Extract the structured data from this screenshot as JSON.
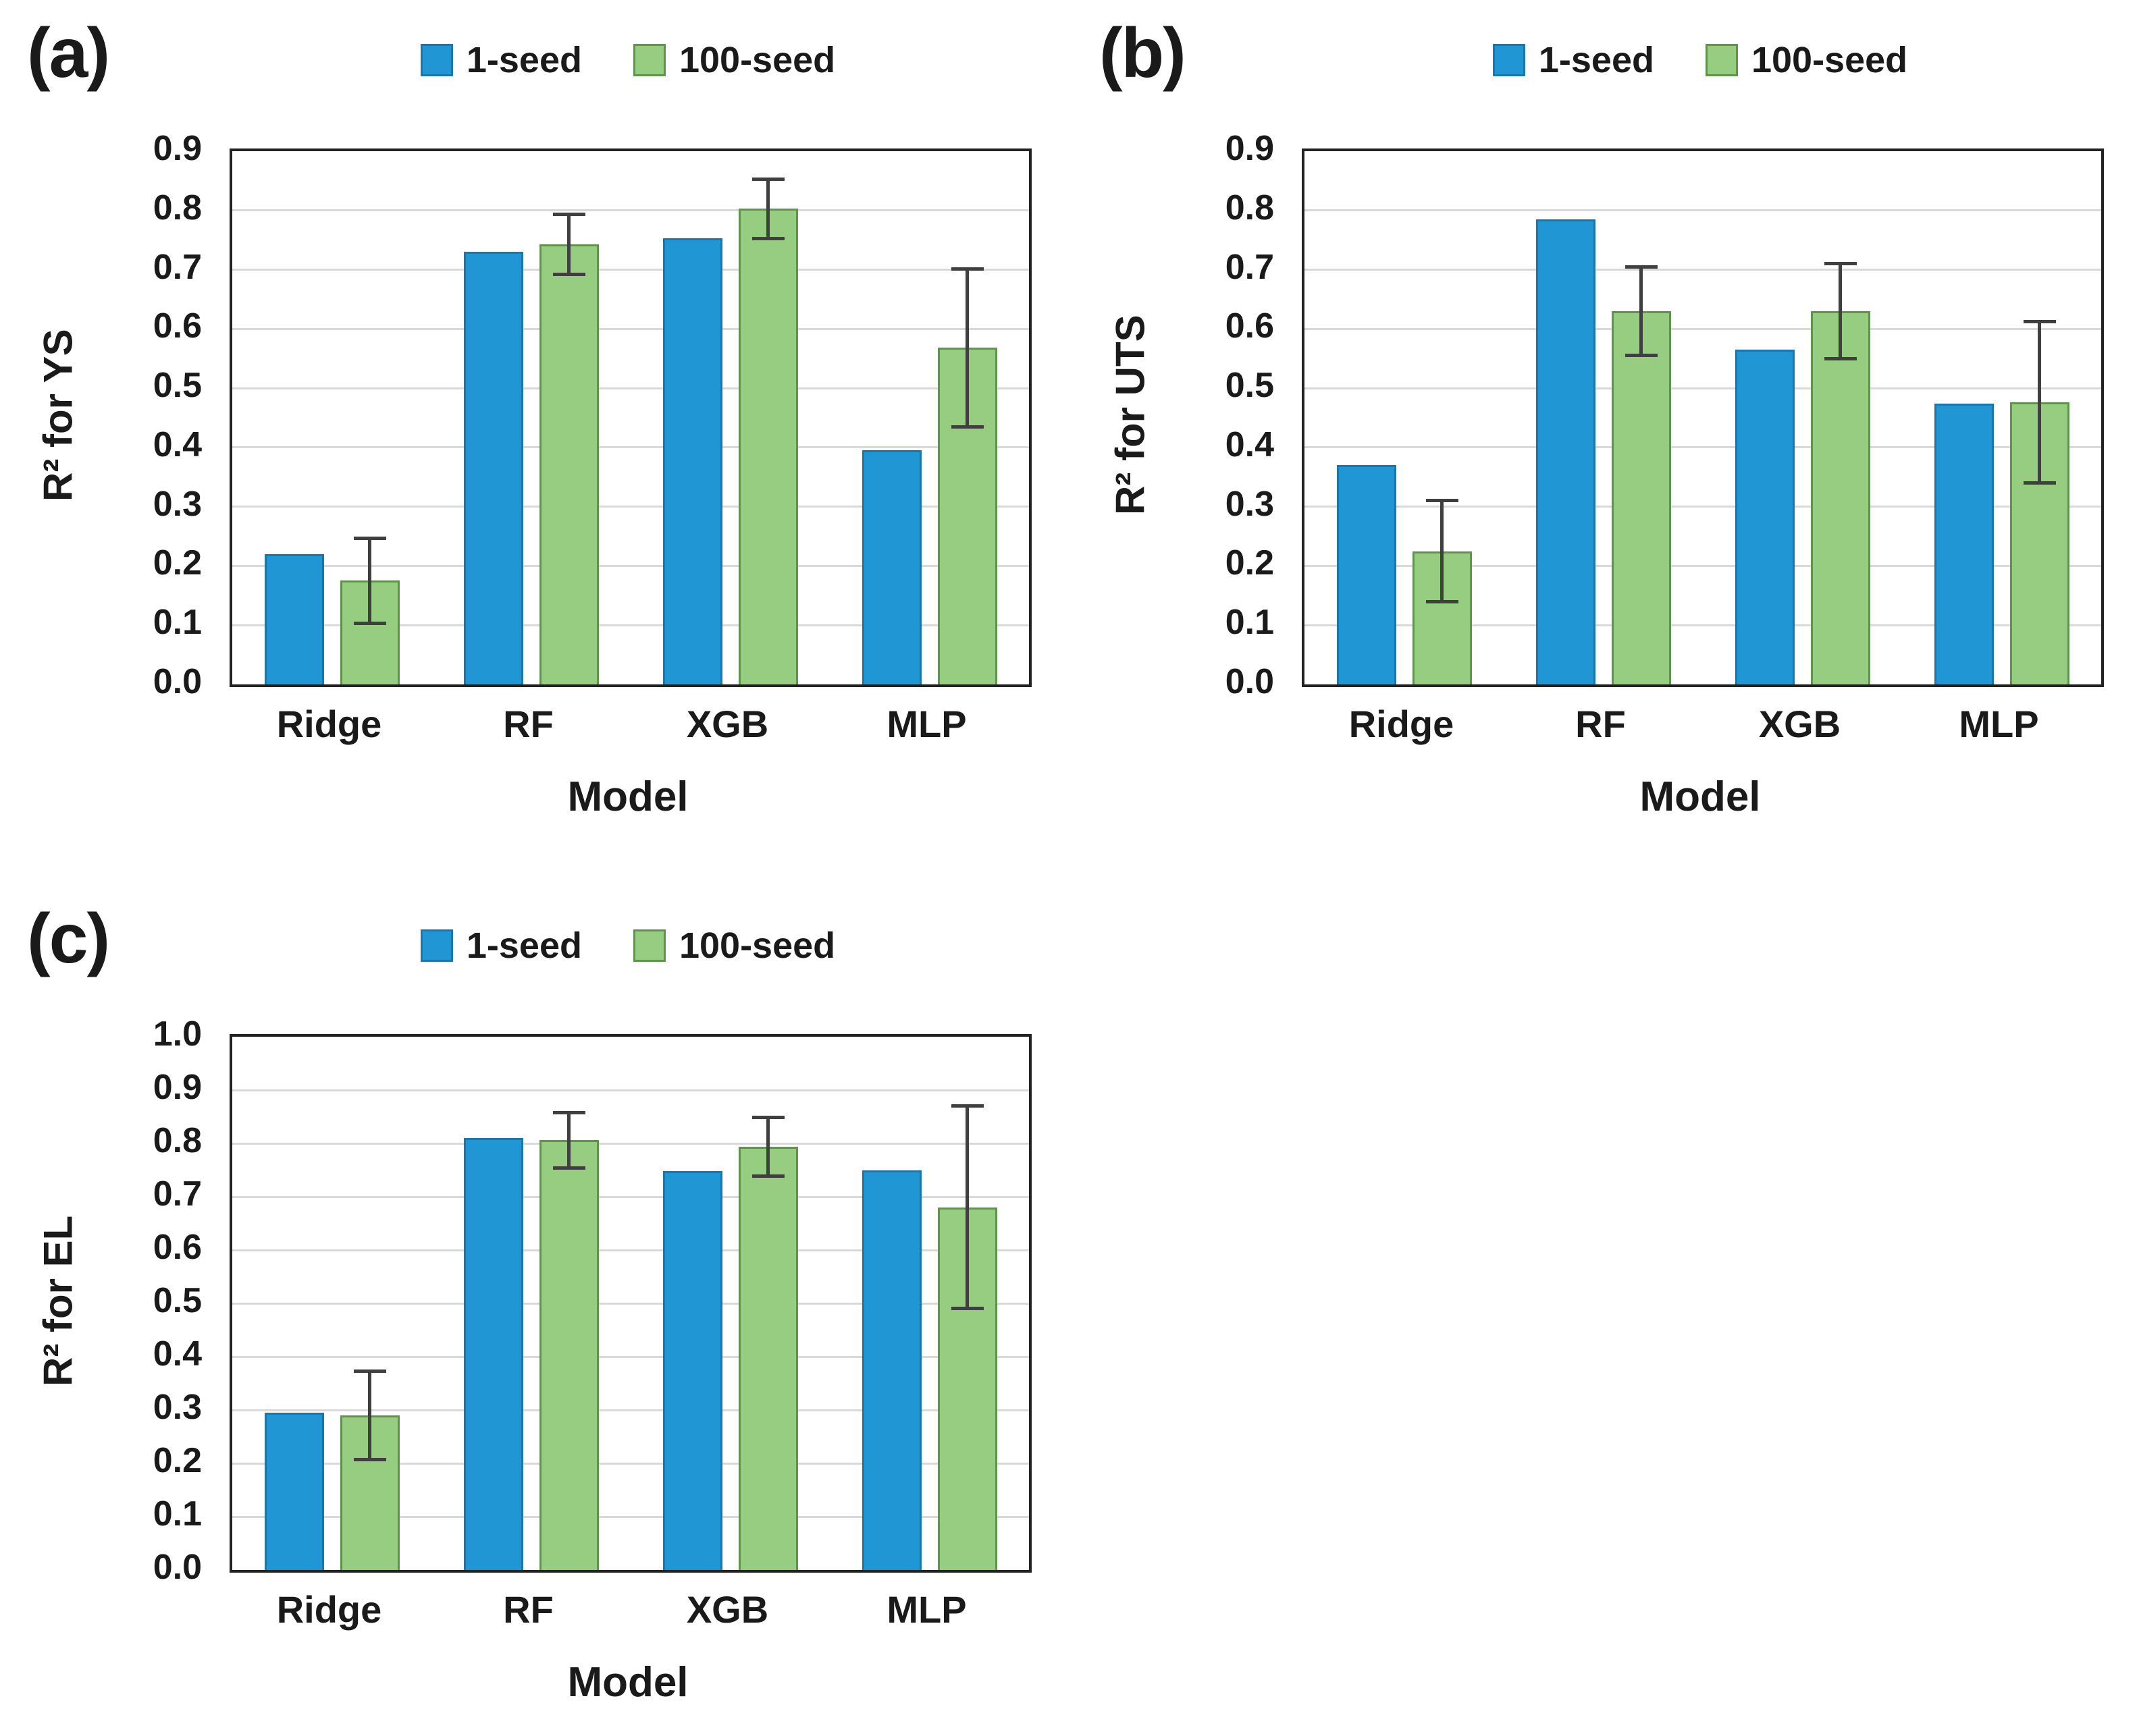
{
  "chart_data": [
    {
      "type": "bar",
      "panel_label": "(a)",
      "ylabel": "R² for YS",
      "xlabel": "Model",
      "ymax": 0.9,
      "ystep": 0.1,
      "ylim": [
        0.0,
        0.9
      ],
      "grid": "horizontal",
      "legend_position": "top-center",
      "yticks": [
        "0.9",
        "0.8",
        "0.7",
        "0.6",
        "0.5",
        "0.4",
        "0.3",
        "0.2",
        "0.1",
        "0.0"
      ],
      "categories": [
        "Ridge",
        "RF",
        "XGB",
        "MLP"
      ],
      "series": [
        {
          "name": "1-seed",
          "color": "#2196D4",
          "border": "#1878AE",
          "values": [
            0.22,
            0.73,
            0.753,
            0.395
          ],
          "errors": [
            null,
            null,
            null,
            null
          ]
        },
        {
          "name": "100-seed",
          "color": "#97CD80",
          "border": "#5E944B",
          "values": [
            0.175,
            0.743,
            0.803,
            0.568
          ],
          "errors": [
            0.072,
            0.051,
            0.05,
            0.133
          ]
        }
      ]
    },
    {
      "type": "bar",
      "panel_label": "(b)",
      "ylabel": "R² for UTS",
      "xlabel": "Model",
      "ymax": 0.9,
      "ystep": 0.1,
      "ylim": [
        0.0,
        0.9
      ],
      "grid": "horizontal",
      "legend_position": "top-center",
      "yticks": [
        "0.9",
        "0.8",
        "0.7",
        "0.6",
        "0.5",
        "0.4",
        "0.3",
        "0.2",
        "0.1",
        "0.0"
      ],
      "categories": [
        "Ridge",
        "RF",
        "XGB",
        "MLP"
      ],
      "series": [
        {
          "name": "1-seed",
          "color": "#2196D4",
          "border": "#1878AE",
          "values": [
            0.37,
            0.785,
            0.565,
            0.474
          ],
          "errors": [
            null,
            null,
            null,
            null
          ]
        },
        {
          "name": "100-seed",
          "color": "#97CD80",
          "border": "#5E944B",
          "values": [
            0.225,
            0.63,
            0.63,
            0.476
          ],
          "errors": [
            0.085,
            0.075,
            0.08,
            0.136
          ]
        }
      ]
    },
    {
      "type": "bar",
      "panel_label": "(c)",
      "ylabel": "R² for EL",
      "xlabel": "Model",
      "ymax": 1.0,
      "ystep": 0.1,
      "ylim": [
        0.0,
        1.0
      ],
      "grid": "horizontal",
      "legend_position": "top-center",
      "yticks": [
        "1.0",
        "0.9",
        "0.8",
        "0.7",
        "0.6",
        "0.5",
        "0.4",
        "0.3",
        "0.2",
        "0.1",
        "0.0"
      ],
      "categories": [
        "Ridge",
        "RF",
        "XGB",
        "MLP"
      ],
      "series": [
        {
          "name": "1-seed",
          "color": "#2196D4",
          "border": "#1878AE",
          "values": [
            0.295,
            0.81,
            0.748,
            0.75
          ],
          "errors": [
            null,
            null,
            null,
            null
          ]
        },
        {
          "name": "100-seed",
          "color": "#97CD80",
          "border": "#5E944B",
          "values": [
            0.29,
            0.806,
            0.794,
            0.68
          ],
          "errors": [
            0.083,
            0.052,
            0.055,
            0.19
          ]
        }
      ]
    }
  ],
  "style_colors": {
    "series_1_seed": "#2196D4",
    "series_100_seed": "#97CD80",
    "error_bar": "#3F3F3F",
    "gridline": "#D9D9D9",
    "plot_border": "#222222",
    "text": "#1A1A1A"
  }
}
